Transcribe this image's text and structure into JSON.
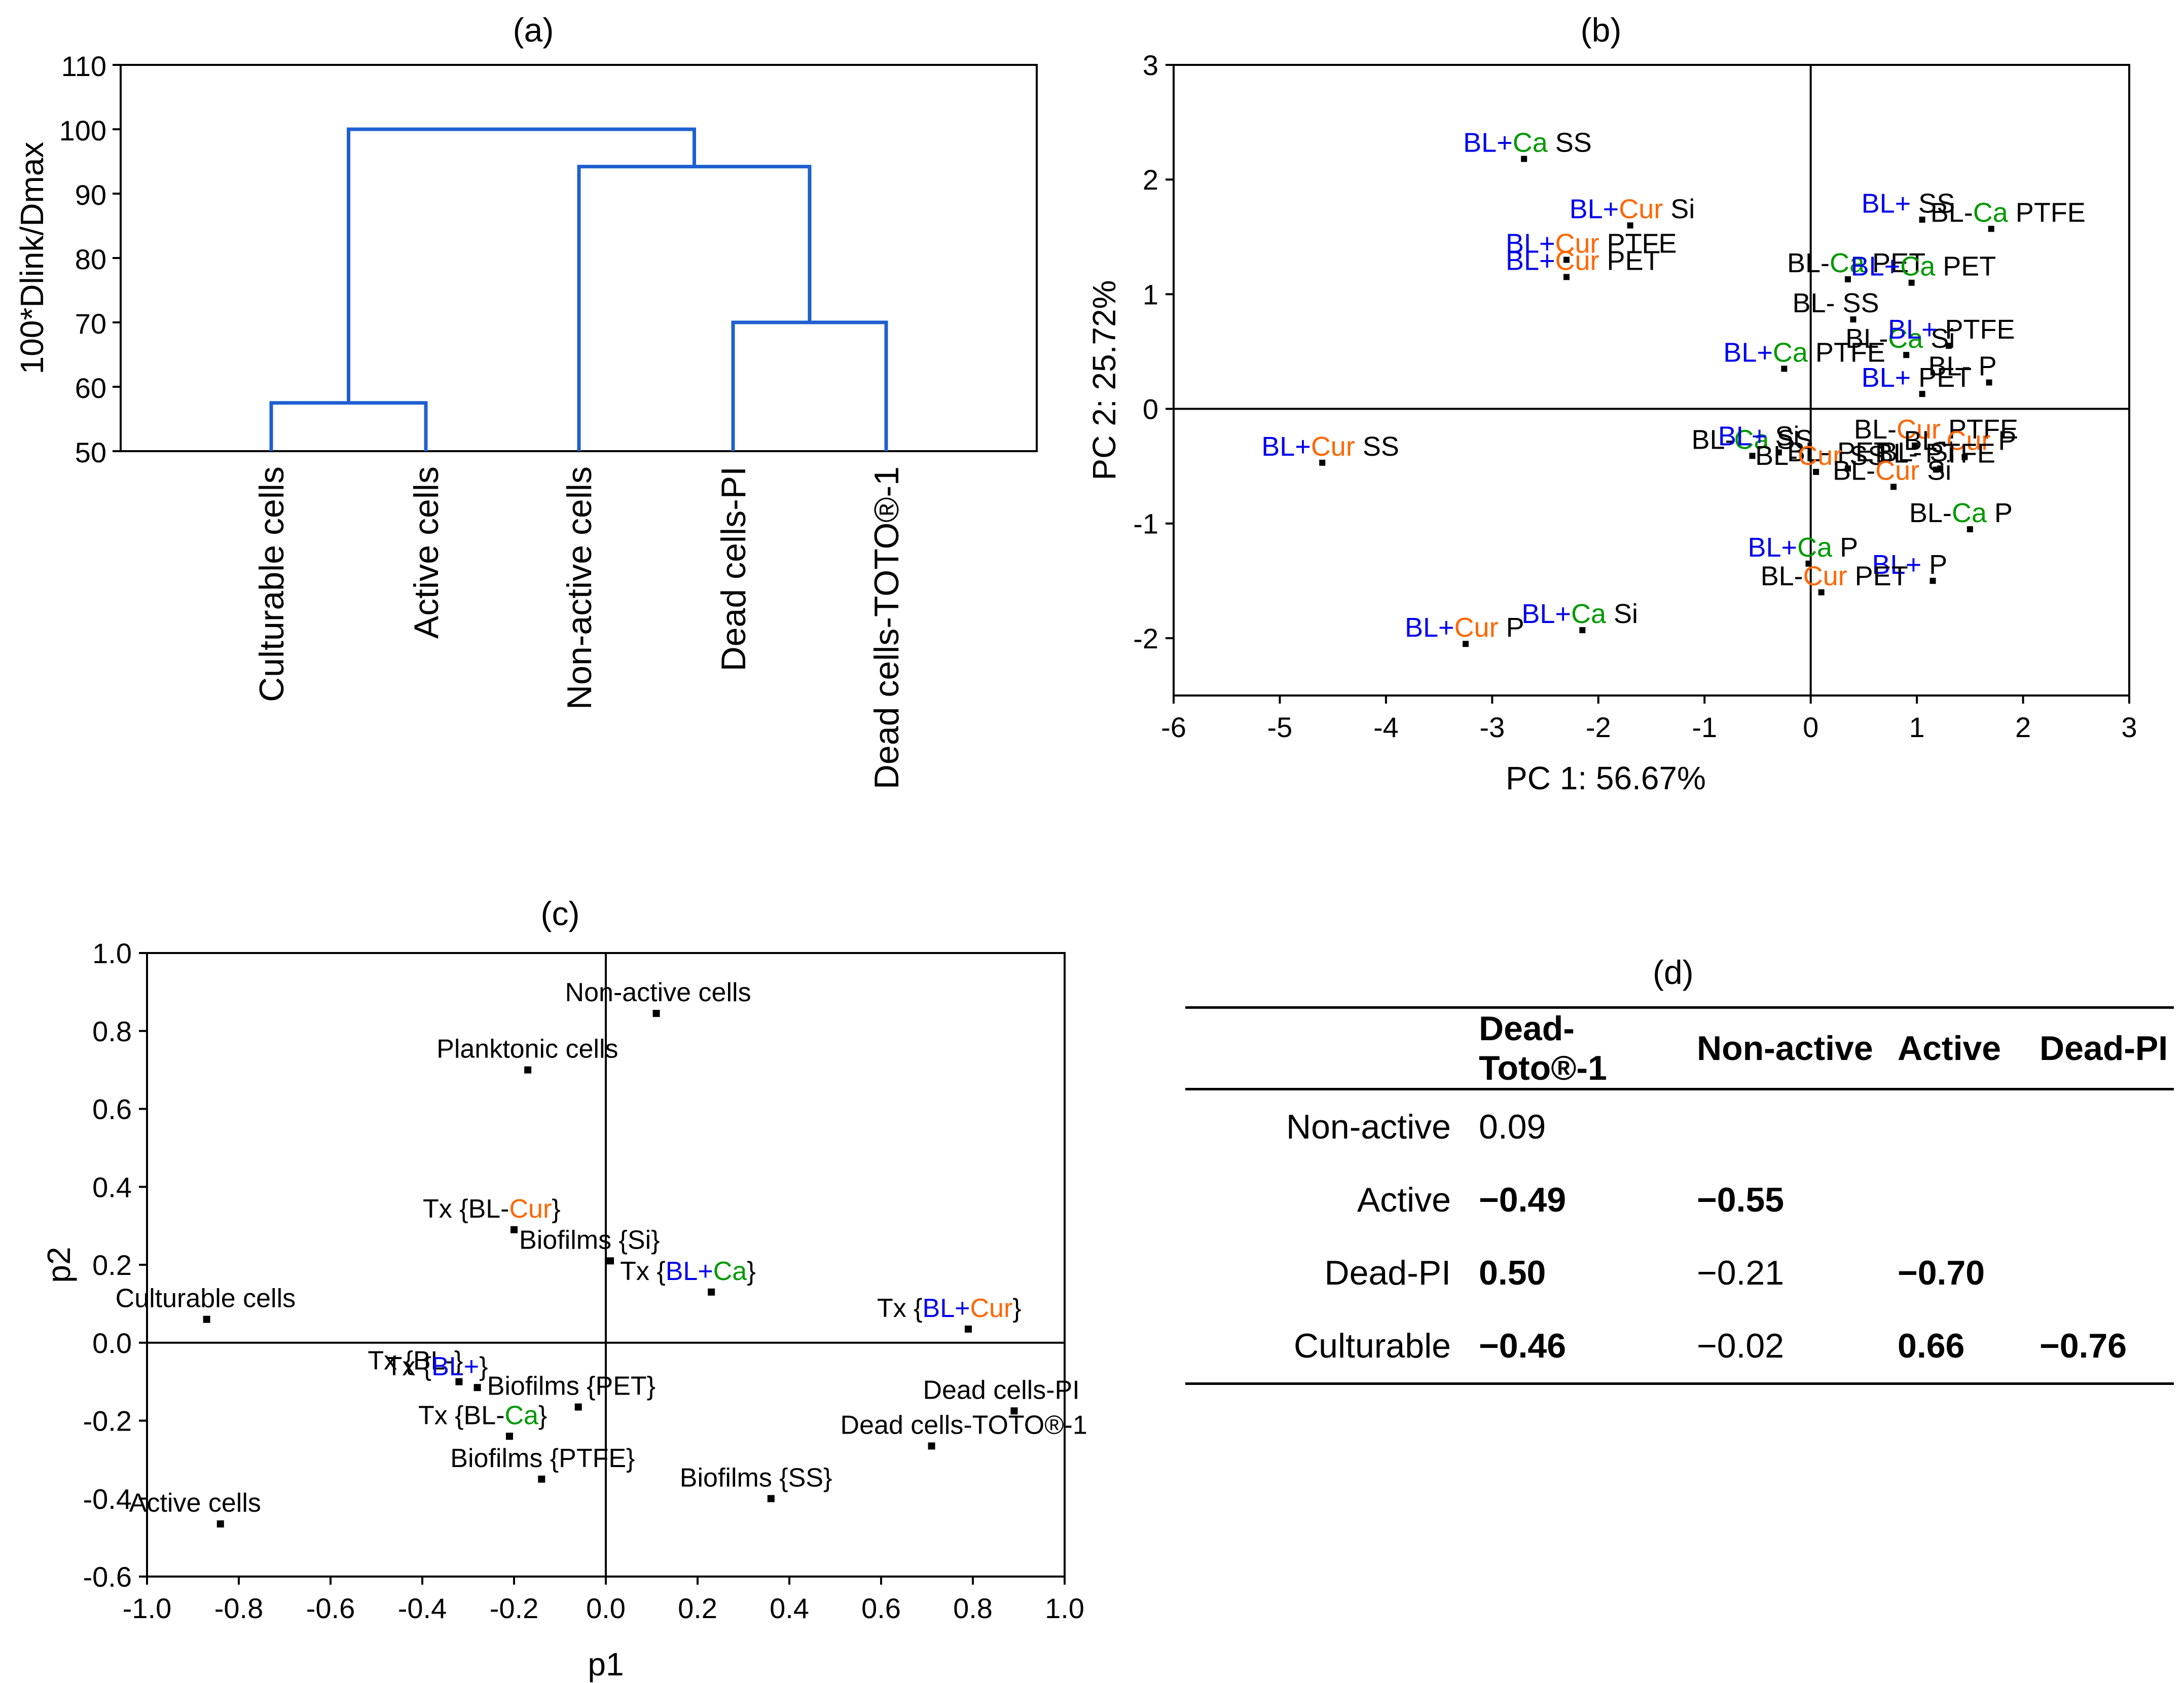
{
  "colors": {
    "bl": "#0000ee",
    "cur": "#ff6600",
    "ca": "#009900",
    "line": "#1f5fd0"
  },
  "chart_data": [
    {
      "panel": "(a)",
      "type": "dendrogram",
      "ylabel": "100*Dlink/Dmax",
      "ylim": [
        50,
        110
      ],
      "yticks": [
        "50",
        "60",
        "70",
        "80",
        "90",
        "100",
        "110"
      ],
      "leaves": [
        "Culturable cells",
        "Active cells",
        "Non-active cells",
        "Dead cells-PI",
        "Dead cells-TOTO®-1"
      ],
      "merges": [
        {
          "left": "Culturable cells",
          "right": "Active cells",
          "height": 57.5
        },
        {
          "left": "Dead cells-PI",
          "right": "Dead cells-TOTO®-1",
          "height": 70
        },
        {
          "left": "Non-active cells",
          "right": "Dead cluster",
          "height": 94.2
        },
        {
          "left": "Culturable/Active cluster",
          "right": "Non-active/Dead cluster",
          "height": 100
        }
      ]
    },
    {
      "panel": "(b)",
      "type": "scatter",
      "xlabel": "PC 1: 56.67%",
      "ylabel": "PC 2: 25.72%",
      "xlim": [
        -6,
        3
      ],
      "ylim": [
        -2.5,
        3
      ],
      "xticks": [
        "-6",
        "-5",
        "-4",
        "-3",
        "-2",
        "-1",
        "0",
        "1",
        "2",
        "3"
      ],
      "yticks": [
        "-2",
        "-1",
        "0",
        "1",
        "2",
        "3"
      ],
      "points": [
        {
          "x": -2.7,
          "y": 2.18,
          "label": [
            "BL+",
            "Ca",
            " SS"
          ],
          "color": [
            "bl",
            "ca",
            "k"
          ]
        },
        {
          "x": -1.7,
          "y": 1.6,
          "label": [
            "BL+",
            "Cur",
            " Si"
          ],
          "color": [
            "bl",
            "cur",
            "k"
          ]
        },
        {
          "x": -2.3,
          "y": 1.3,
          "label": [
            "BL+",
            "Cur",
            " PTFE"
          ],
          "color": [
            "bl",
            "cur",
            "k"
          ]
        },
        {
          "x": -2.3,
          "y": 1.15,
          "label": [
            "BL+",
            "Cur",
            " PET"
          ],
          "color": [
            "bl",
            "cur",
            "k"
          ]
        },
        {
          "x": -0.25,
          "y": 0.35,
          "label": [
            "BL+",
            "Ca",
            " PTFE"
          ],
          "color": [
            "bl",
            "ca",
            "k"
          ]
        },
        {
          "x": -4.6,
          "y": -0.47,
          "label": [
            "BL+",
            "Cur",
            " SS"
          ],
          "color": [
            "bl",
            "cur",
            "k"
          ]
        },
        {
          "x": -3.25,
          "y": -2.05,
          "label": [
            "BL+",
            "Cur",
            " P"
          ],
          "color": [
            "bl",
            "cur",
            "k"
          ]
        },
        {
          "x": -2.15,
          "y": -1.93,
          "label": [
            "BL+",
            "Ca",
            " Si"
          ],
          "color": [
            "bl",
            "ca",
            "k"
          ]
        },
        {
          "x": 1.05,
          "y": 1.65,
          "label": [
            "BL+",
            "  SS"
          ],
          "color": [
            "bl",
            "k"
          ]
        },
        {
          "x": 1.7,
          "y": 1.57,
          "label": [
            "BL-",
            "Ca",
            " PTFE"
          ],
          "color": [
            "k",
            "ca",
            "k"
          ]
        },
        {
          "x": 0.35,
          "y": 1.13,
          "label": [
            "BL-",
            "Ca",
            " PET"
          ],
          "color": [
            "k",
            "ca",
            "k"
          ]
        },
        {
          "x": 0.95,
          "y": 1.1,
          "label": [
            "BL+",
            "Ca",
            " PET"
          ],
          "color": [
            "bl",
            "ca",
            "k"
          ]
        },
        {
          "x": 0.4,
          "y": 0.78,
          "label": [
            "BL-",
            " SS"
          ],
          "color": [
            "k",
            "k"
          ]
        },
        {
          "x": 0.9,
          "y": 0.47,
          "label": [
            "BL-",
            "Ca",
            " Si"
          ],
          "color": [
            "k",
            "ca",
            "k"
          ]
        },
        {
          "x": 1.3,
          "y": 0.55,
          "label": [
            "BL+",
            " PTFE"
          ],
          "color": [
            "bl",
            "k"
          ]
        },
        {
          "x": 1.68,
          "y": 0.23,
          "label": [
            "BL-",
            " P"
          ],
          "color": [
            "k",
            "k"
          ]
        },
        {
          "x": 1.05,
          "y": 0.13,
          "label": [
            "BL+",
            " PET"
          ],
          "color": [
            "bl",
            "k"
          ]
        },
        {
          "x": -0.55,
          "y": -0.41,
          "label": [
            "BL-",
            "Ca",
            " SS"
          ],
          "color": [
            "k",
            "ca",
            "k"
          ]
        },
        {
          "x": -0.3,
          "y": -0.38,
          "label": [
            "BL+",
            " Si"
          ],
          "color": [
            "bl",
            "k"
          ]
        },
        {
          "x": 0.98,
          "y": -0.32,
          "label": [
            "BL-",
            "Cur",
            " PTFE"
          ],
          "color": [
            "k",
            "cur",
            "k"
          ]
        },
        {
          "x": 0.35,
          "y": -0.52,
          "label": [
            "BL-",
            " PET"
          ],
          "color": [
            "k",
            "k"
          ]
        },
        {
          "x": 1.22,
          "y": -0.52,
          "label": [
            "BL-",
            " Si"
          ],
          "color": [
            "k",
            "k"
          ]
        },
        {
          "x": 1.45,
          "y": -0.42,
          "label": [
            "BL-",
            "Cur",
            " P"
          ],
          "color": [
            "k",
            "cur",
            "k"
          ]
        },
        {
          "x": 0.05,
          "y": -0.55,
          "label": [
            "BL-",
            "Cur",
            " SS"
          ],
          "color": [
            "k",
            "cur",
            "k"
          ]
        },
        {
          "x": 1.18,
          "y": -0.53,
          "label": [
            "BL-",
            " PTFE"
          ],
          "color": [
            "k",
            "k"
          ]
        },
        {
          "x": 0.78,
          "y": -0.68,
          "label": [
            "BL-",
            "Cur",
            " Si"
          ],
          "color": [
            "k",
            "cur",
            "k"
          ]
        },
        {
          "x": 1.5,
          "y": -1.05,
          "label": [
            "BL-",
            "Ca",
            " P"
          ],
          "color": [
            "k",
            "ca",
            "k"
          ]
        },
        {
          "x": -0.02,
          "y": -1.35,
          "label": [
            "BL+",
            "Ca",
            " P"
          ],
          "color": [
            "bl",
            "ca",
            "k"
          ]
        },
        {
          "x": 1.15,
          "y": -1.5,
          "label": [
            "BL+",
            " P"
          ],
          "color": [
            "bl",
            "k"
          ]
        },
        {
          "x": 0.1,
          "y": -1.6,
          "label": [
            "BL-",
            "Cur",
            " PET"
          ],
          "color": [
            "k",
            "cur",
            "k"
          ]
        }
      ]
    },
    {
      "panel": "(c)",
      "type": "scatter",
      "xlabel": "p1",
      "ylabel": "p2",
      "xlim": [
        -1.0,
        1.0
      ],
      "ylim": [
        -0.6,
        1.0
      ],
      "xticks": [
        "-1.0",
        "-0.8",
        "-0.6",
        "-0.4",
        "-0.2",
        "0.0",
        "0.2",
        "0.4",
        "0.6",
        "0.8",
        "1.0"
      ],
      "yticks": [
        "-0.6",
        "-0.4",
        "-0.2",
        "0.0",
        "0.2",
        "0.4",
        "0.6",
        "0.8",
        "1.0"
      ],
      "points": [
        {
          "x": 0.11,
          "y": 0.845,
          "label": [
            "Non-active cells"
          ],
          "color": [
            "k"
          ]
        },
        {
          "x": -0.17,
          "y": 0.7,
          "label": [
            "Planktonic cells"
          ],
          "color": [
            "k"
          ]
        },
        {
          "x": -0.2,
          "y": 0.29,
          "label": [
            "Tx {BL-",
            "Cur",
            "}"
          ],
          "color": [
            "k",
            "cur",
            "k"
          ]
        },
        {
          "x": 0.01,
          "y": 0.21,
          "label": [
            "Biofilms {Si}"
          ],
          "color": [
            "k"
          ]
        },
        {
          "x": 0.23,
          "y": 0.13,
          "label": [
            "Tx {",
            "BL+",
            "Ca",
            "}"
          ],
          "color": [
            "k",
            "bl",
            "ca",
            "k"
          ]
        },
        {
          "x": -0.87,
          "y": 0.06,
          "label": [
            "Culturable cells"
          ],
          "color": [
            "k"
          ]
        },
        {
          "x": 0.79,
          "y": 0.035,
          "label": [
            "Tx {",
            "BL+",
            "Cur",
            "}"
          ],
          "color": [
            "k",
            "bl",
            "cur",
            "k"
          ]
        },
        {
          "x": -0.32,
          "y": -0.1,
          "label": [
            "Tx {BL-}"
          ],
          "color": [
            "k"
          ]
        },
        {
          "x": -0.28,
          "y": -0.115,
          "label": [
            "Tx {",
            "BL+",
            "}"
          ],
          "color": [
            "k",
            "bl",
            "k"
          ]
        },
        {
          "x": -0.06,
          "y": -0.165,
          "label": [
            "Biofilms {PET}"
          ],
          "color": [
            "k"
          ]
        },
        {
          "x": 0.89,
          "y": -0.175,
          "label": [
            "Dead cells-PI"
          ],
          "color": [
            "k"
          ]
        },
        {
          "x": -0.21,
          "y": -0.24,
          "label": [
            "Tx {BL-",
            "Ca",
            "}"
          ],
          "color": [
            "k",
            "ca",
            "k"
          ]
        },
        {
          "x": 0.71,
          "y": -0.265,
          "label": [
            "Dead cells-TOTO®-1"
          ],
          "color": [
            "k"
          ]
        },
        {
          "x": -0.14,
          "y": -0.35,
          "label": [
            "Biofilms {PTFE}"
          ],
          "color": [
            "k"
          ]
        },
        {
          "x": 0.36,
          "y": -0.4,
          "label": [
            "Biofilms {SS}"
          ],
          "color": [
            "k"
          ]
        },
        {
          "x": -0.84,
          "y": -0.465,
          "label": [
            "Active cells"
          ],
          "color": [
            "k"
          ]
        }
      ]
    },
    {
      "panel": "(d)",
      "type": "table",
      "columns": [
        "",
        "Dead-Toto®-1",
        "Non-active",
        "Active",
        "Dead-PI"
      ],
      "rows": [
        {
          "label": "Non-active",
          "cells": [
            {
              "v": "0.09",
              "b": false
            }
          ]
        },
        {
          "label": "Active",
          "cells": [
            {
              "v": "−0.49",
              "b": true
            },
            {
              "v": "−0.55",
              "b": true
            }
          ]
        },
        {
          "label": "Dead-PI",
          "cells": [
            {
              "v": "0.50",
              "b": true
            },
            {
              "v": "−0.21",
              "b": false
            },
            {
              "v": "−0.70",
              "b": true
            }
          ]
        },
        {
          "label": "Culturable",
          "cells": [
            {
              "v": "−0.46",
              "b": true
            },
            {
              "v": "−0.02",
              "b": false
            },
            {
              "v": "0.66",
              "b": true
            },
            {
              "v": "−0.76",
              "b": true
            }
          ]
        }
      ]
    }
  ]
}
